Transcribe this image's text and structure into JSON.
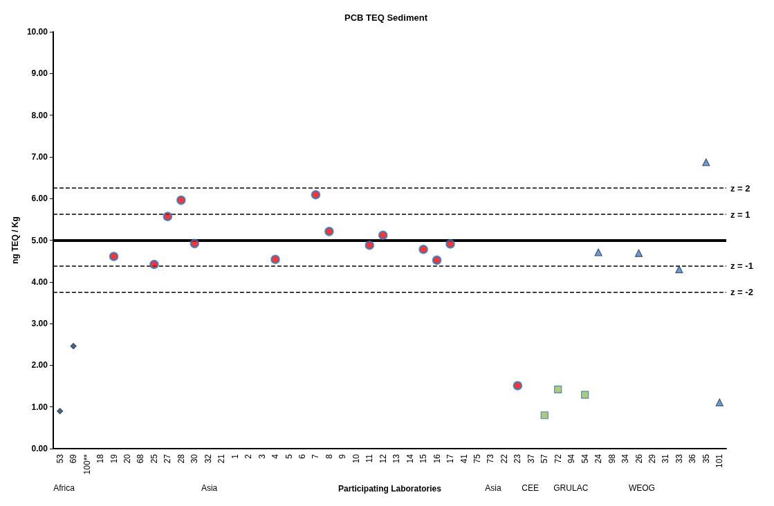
{
  "chart_data": {
    "type": "scatter",
    "title": "PCB TEQ Sediment",
    "xlabel": "Participating Laboratories",
    "ylabel": "ng TEQ / Kg",
    "categories": [
      "53",
      "69",
      "100**",
      "18",
      "19",
      "20",
      "68",
      "25",
      "27",
      "28",
      "30",
      "32",
      "21",
      "1",
      "2",
      "3",
      "4",
      "5",
      "6",
      "7",
      "8",
      "9",
      "10",
      "11",
      "12",
      "13",
      "14",
      "15",
      "16",
      "17",
      "41",
      "75",
      "73",
      "22",
      "23",
      "37",
      "57",
      "72",
      "94",
      "54",
      "24",
      "98",
      "34",
      "26",
      "29",
      "31",
      "33",
      "36",
      "35",
      "101"
    ],
    "series": [
      {
        "color": "#243f60",
        "marker": "diamond",
        "x": [
          "53",
          "69"
        ],
        "values": [
          0.9,
          2.46
        ]
      },
      {
        "color": "#ff0000",
        "marker": "circle",
        "x": [
          "19",
          "25",
          "27",
          "28",
          "30",
          "4",
          "7",
          "8",
          "11",
          "12",
          "15",
          "16",
          "17",
          "23"
        ],
        "values": [
          4.61,
          4.42,
          5.57,
          5.96,
          4.92,
          4.54,
          6.09,
          5.21,
          4.88,
          5.12,
          4.78,
          4.52,
          4.91,
          1.51
        ]
      },
      {
        "color": "#9bbb59",
        "marker": "square",
        "x": [
          "57",
          "72",
          "54"
        ],
        "values": [
          0.8,
          1.42,
          1.29
        ]
      },
      {
        "color": "#4f81bd",
        "marker": "triangle",
        "x": [
          "24",
          "26",
          "33",
          "35",
          "101"
        ],
        "values": [
          4.71,
          4.69,
          4.3,
          6.87,
          1.11
        ]
      }
    ],
    "ylim": [
      0,
      10
    ],
    "yticks": [
      {
        "value": 0,
        "label": "0.00"
      },
      {
        "value": 1,
        "label": "1.00"
      },
      {
        "value": 2,
        "label": "2.00"
      },
      {
        "value": 3,
        "label": "3.00"
      },
      {
        "value": 4,
        "label": "4.00"
      },
      {
        "value": 5,
        "label": "5.00"
      },
      {
        "value": 6,
        "label": "6.00"
      },
      {
        "value": 7,
        "label": "7.00"
      },
      {
        "value": 8,
        "label": "8.00"
      },
      {
        "value": 9,
        "label": "9.00"
      },
      {
        "value": 10,
        "label": "10.00"
      }
    ],
    "ref_lines": [
      {
        "axis": "y",
        "value": 6.25,
        "color": "#000000",
        "line_style": "dashed"
      },
      {
        "axis": "y",
        "value": 5.62,
        "color": "#000000",
        "line_style": "dashed"
      },
      {
        "axis": "y",
        "value": 5.0,
        "color": "#000000",
        "line_style": "solid"
      },
      {
        "axis": "y",
        "value": 4.38,
        "color": "#000000",
        "line_style": "dashed"
      },
      {
        "axis": "y",
        "value": 3.75,
        "color": "#000000",
        "line_style": "dashed"
      }
    ],
    "annotations": [
      "z = 2",
      "z = 1",
      "z = -1",
      "z = -2",
      "Africa",
      "Asia",
      "Asia",
      "CEE",
      "GRULAC",
      "WEOG"
    ],
    "grid": false
  }
}
